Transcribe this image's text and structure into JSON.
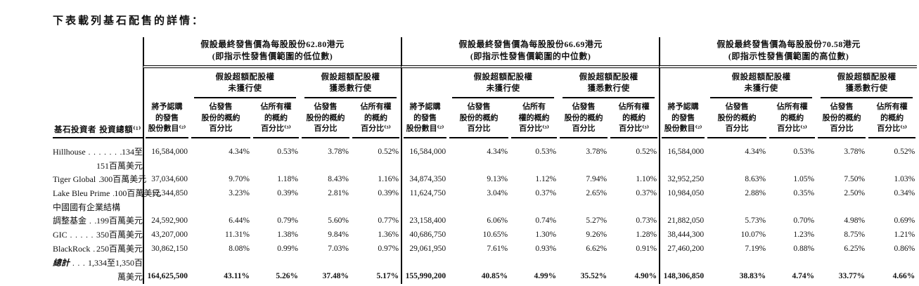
{
  "page": {
    "intro": "下表載列基石配售的詳情："
  },
  "table": {
    "investor_col_header": "基石投資者",
    "investment_col_header": "投資總額⁽¹⁾",
    "price_groups": [
      {
        "title": "假設最終發售價為每股股份62.80港元\n(即指示性發售價範圍的低位數)",
        "subgroup_not_exercised": "假設超額配股權\n未獲行使",
        "subgroup_exercised": "假設超額配股權\n獲悉數行使",
        "columns": [
          "將予認購\n的發售\n股份數目⁽²⁾",
          "佔發售\n股份的概約\n百分比",
          "佔所有權\n的概約\n百分比⁽³⁾",
          "佔發售\n股份的概約\n百分比",
          "佔所有權\n的概約\n百分比⁽³⁾"
        ]
      },
      {
        "title": "假設最終發售價為每股股份66.69港元\n(即指示性發售價範圍的中位數)",
        "subgroup_not_exercised": "假設超額配股權\n未獲行使",
        "subgroup_exercised": "假設超額配股權\n獲悉數行使",
        "columns": [
          "將予認購\n的發售\n股份數目⁽²⁾",
          "佔發售\n股份的概約\n百分比",
          "佔所有\n權的概約\n百分比⁽³⁾",
          "佔發售\n股份的概約\n百分比",
          "佔所有權\n的概約\n百分比⁽³⁾"
        ]
      },
      {
        "title": "假設最終發售價為每股股份70.58港元\n(即指示性發售價範圍的高位數)",
        "subgroup_not_exercised": "假設超額配股權\n未獲行使",
        "subgroup_exercised": "假設超額配股權\n獲悉數行使",
        "columns": [
          "將予認購\n的發售\n股份數目⁽²⁾",
          "佔發售\n股份的概約\n百分比",
          "佔所有權\n的概約\n百分比⁽³⁾",
          "佔發售\n股份的概約\n百分比",
          "佔所有權\n的概約\n百分比⁽³⁾"
        ]
      }
    ],
    "rows": [
      {
        "name_lines": [
          "Hillhouse"
        ],
        "leader": ". . . . . . . . . .",
        "amount_lines": [
          "134至",
          "151百萬美元"
        ],
        "is_total": false,
        "values": [
          [
            "16,584,000",
            "4.34%",
            "0.53%",
            "3.78%",
            "0.52%"
          ],
          [
            "16,584,000",
            "4.34%",
            "0.53%",
            "3.78%",
            "0.52%"
          ],
          [
            "16,584,000",
            "4.34%",
            "0.53%",
            "3.78%",
            "0.52%"
          ]
        ]
      },
      {
        "name_lines": [
          "Tiger Global"
        ],
        "leader": ". . . . . . . .",
        "amount_lines": [
          "300百萬美元"
        ],
        "is_total": false,
        "values": [
          [
            "37,034,600",
            "9.70%",
            "1.18%",
            "8.43%",
            "1.16%"
          ],
          [
            "34,874,350",
            "9.13%",
            "1.12%",
            "7.94%",
            "1.10%"
          ],
          [
            "32,952,250",
            "8.63%",
            "1.05%",
            "7.50%",
            "1.03%"
          ]
        ]
      },
      {
        "name_lines": [
          "Lake Bleu Prime"
        ],
        "leader": ". . . .",
        "amount_lines": [
          "100百萬美元"
        ],
        "is_total": false,
        "values": [
          [
            "12,344,850",
            "3.23%",
            "0.39%",
            "2.81%",
            "0.39%"
          ],
          [
            "11,624,750",
            "3.04%",
            "0.37%",
            "2.65%",
            "0.37%"
          ],
          [
            "10,984,050",
            "2.88%",
            "0.35%",
            "2.50%",
            "0.34%"
          ]
        ]
      },
      {
        "name_lines": [
          "中國國有企業結構",
          "調整基金"
        ],
        "leader": ". . . . . . .",
        "amount_lines": [
          "199百萬美元"
        ],
        "is_total": false,
        "values": [
          [
            "24,592,900",
            "6.44%",
            "0.79%",
            "5.60%",
            "0.77%"
          ],
          [
            "23,158,400",
            "6.06%",
            "0.74%",
            "5.27%",
            "0.73%"
          ],
          [
            "21,882,050",
            "5.73%",
            "0.70%",
            "4.98%",
            "0.69%"
          ]
        ]
      },
      {
        "name_lines": [
          "GIC"
        ],
        "leader": ". . . . . . . . . . . . . .",
        "amount_lines": [
          "350百萬美元"
        ],
        "is_total": false,
        "values": [
          [
            "43,207,000",
            "11.31%",
            "1.38%",
            "9.84%",
            "1.36%"
          ],
          [
            "40,686,750",
            "10.65%",
            "1.30%",
            "9.26%",
            "1.28%"
          ],
          [
            "38,444,300",
            "10.07%",
            "1.23%",
            "8.75%",
            "1.21%"
          ]
        ]
      },
      {
        "name_lines": [
          "BlackRock"
        ],
        "leader": ". . . . . . . . .",
        "amount_lines": [
          "250百萬美元"
        ],
        "is_total": false,
        "values": [
          [
            "30,862,150",
            "8.08%",
            "0.99%",
            "7.03%",
            "0.97%"
          ],
          [
            "29,061,950",
            "7.61%",
            "0.93%",
            "6.62%",
            "0.91%"
          ],
          [
            "27,460,200",
            "7.19%",
            "0.88%",
            "6.25%",
            "0.86%"
          ]
        ]
      },
      {
        "name_lines": [
          "總計"
        ],
        "leader": ". . . . . . . . . . . . .",
        "amount_lines": [
          "1,334至1,350百",
          "萬美元"
        ],
        "is_total": true,
        "values": [
          [
            "164,625,500",
            "43.11%",
            "5.26%",
            "37.48%",
            "5.17%"
          ],
          [
            "155,990,200",
            "40.85%",
            "4.99%",
            "35.52%",
            "4.90%"
          ],
          [
            "148,306,850",
            "38.83%",
            "4.74%",
            "33.77%",
            "4.66%"
          ]
        ]
      }
    ]
  }
}
